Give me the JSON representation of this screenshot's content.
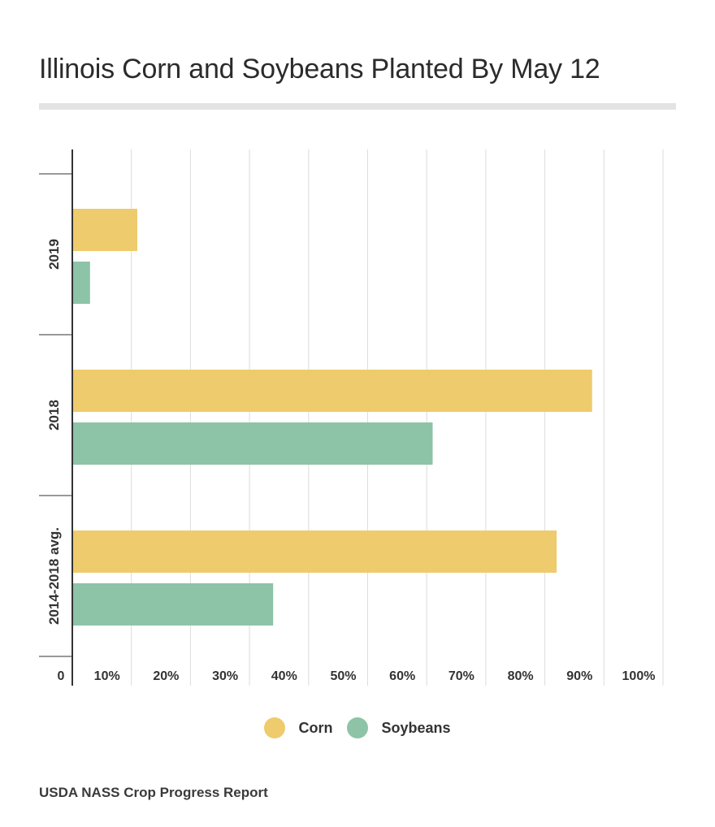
{
  "chart_data": {
    "type": "bar",
    "orientation": "horizontal",
    "title": "Illinois Corn and Soybeans Planted By May 12",
    "categories": [
      "2019",
      "2018",
      "2014-2018 avg."
    ],
    "series": [
      {
        "name": "Corn",
        "color": "#eecb6c",
        "values": [
          11,
          88,
          82
        ]
      },
      {
        "name": "Soybeans",
        "color": "#8dc3a7",
        "values": [
          3,
          61,
          34
        ]
      }
    ],
    "xlim": [
      0,
      100
    ],
    "xticks": [
      0,
      10,
      20,
      30,
      40,
      50,
      60,
      70,
      80,
      90,
      100
    ],
    "xtick_labels": [
      "0",
      "10%",
      "20%",
      "30%",
      "40%",
      "50%",
      "60%",
      "70%",
      "80%",
      "90%",
      "100%"
    ],
    "xlabel": "",
    "ylabel": "",
    "grid": true,
    "legend": "bottom-center",
    "source": "USDA NASS Crop Progress Report"
  }
}
